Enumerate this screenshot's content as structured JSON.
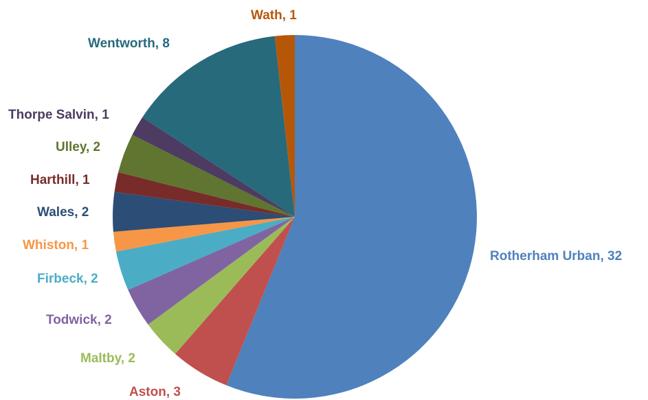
{
  "chart_data": {
    "type": "pie",
    "title": "",
    "legend": "none",
    "label_format": "{name}, {value}",
    "slices": [
      {
        "name": "Rotherham Urban",
        "value": 32,
        "color": "#4f81bd",
        "label_color": "#4f81bd"
      },
      {
        "name": "Aston",
        "value": 3,
        "color": "#c0504d",
        "label_color": "#c0504d"
      },
      {
        "name": "Maltby",
        "value": 2,
        "color": "#9bbb59",
        "label_color": "#9bbb59"
      },
      {
        "name": "Todwick",
        "value": 2,
        "color": "#8064a2",
        "label_color": "#8064a2"
      },
      {
        "name": "Firbeck",
        "value": 2,
        "color": "#4bacc6",
        "label_color": "#4bacc6"
      },
      {
        "name": "Whiston",
        "value": 1,
        "color": "#f79646",
        "label_color": "#f79646"
      },
      {
        "name": "Wales",
        "value": 2,
        "color": "#2c4d75",
        "label_color": "#2c4d75"
      },
      {
        "name": "Harthill",
        "value": 1,
        "color": "#772c2a",
        "label_color": "#772c2a"
      },
      {
        "name": "Ulley",
        "value": 2,
        "color": "#5f7530",
        "label_color": "#5f7530"
      },
      {
        "name": "Thorpe Salvin",
        "value": 1,
        "color": "#4d3b62",
        "label_color": "#4d3b62"
      },
      {
        "name": "Wentworth",
        "value": 8,
        "color": "#276a7c",
        "label_color": "#276a7c"
      },
      {
        "name": "Wath",
        "value": 1,
        "color": "#b65708",
        "label_color": "#b65708"
      }
    ]
  }
}
